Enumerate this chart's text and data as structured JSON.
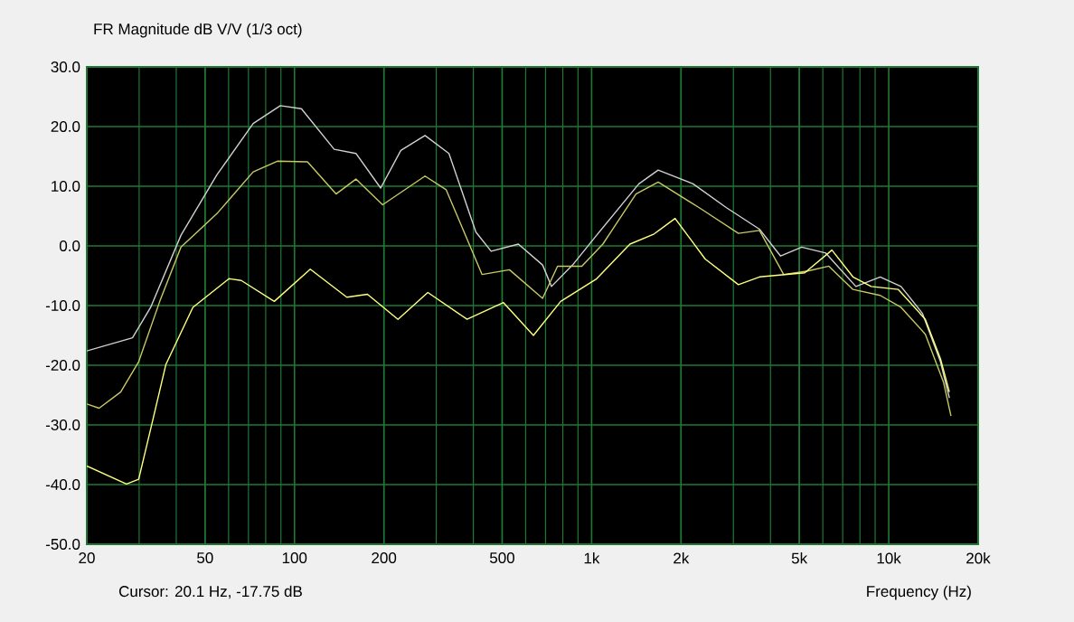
{
  "chart_data": {
    "type": "line",
    "title": "FR Magnitude dB V/V (1/3 oct)",
    "xlabel": "Frequency (Hz)",
    "annotations": [
      "Cursor: 20.1 Hz, -17.75 dB"
    ],
    "log": "x",
    "grid": true,
    "line_style": "solid",
    "xlim": [
      20,
      20000
    ],
    "ylim": [
      -50,
      30
    ],
    "xticks": [
      20,
      50,
      100,
      200,
      500,
      {
        "value": 1000,
        "label": "1k"
      },
      {
        "value": 2000,
        "label": "2k"
      },
      {
        "value": 5000,
        "label": "5k"
      },
      {
        "value": 10000,
        "label": "10k"
      },
      {
        "value": 20000,
        "label": "20k"
      }
    ],
    "yticks": [
      {
        "value": -50,
        "label": "-50.0"
      },
      {
        "value": -40,
        "label": "-40.0"
      },
      {
        "value": -30,
        "label": "-30.0"
      },
      {
        "value": -20,
        "label": "-20.0"
      },
      {
        "value": -10,
        "label": "-10.0"
      },
      {
        "value": 0,
        "label": "0.0"
      },
      {
        "value": 10,
        "label": "10.0"
      },
      {
        "value": 20,
        "label": "20.0"
      },
      {
        "value": 30,
        "label": "30.0"
      }
    ],
    "series": [
      {
        "color": "#d0d0d0",
        "x": [
          20,
          28.5,
          32.8,
          41.5,
          54.8,
          72.6,
          89.6,
          105.5,
          136,
          161,
          195,
          228,
          275,
          331,
          408,
          459,
          567,
          684,
          733,
          863,
          1040,
          1442,
          1675,
          2196,
          2844,
          3673,
          4326,
          5094,
          6140,
          7755,
          9360,
          11000,
          12980,
          14930,
          16000
        ],
        "values": [
          -17.6,
          -15.4,
          -10.3,
          1.8,
          11.9,
          20.5,
          23.5,
          23.0,
          16.2,
          15.5,
          9.7,
          16.0,
          18.5,
          15.5,
          2.3,
          -0.9,
          0.3,
          -3.2,
          -6.8,
          -3.2,
          1.8,
          10.4,
          12.7,
          10.4,
          6.4,
          2.8,
          -1.7,
          -0.2,
          -1.2,
          -6.8,
          -5.2,
          -6.8,
          -11.3,
          -19.4,
          -25.5
        ]
      },
      {
        "color": "#c8c864",
        "x": [
          20,
          22,
          26,
          29.9,
          35.2,
          41.5,
          54.8,
          72.6,
          87.5,
          110.6,
          138,
          161,
          198,
          275,
          324,
          428,
          529,
          684,
          768,
          927,
          1091,
          1410,
          1675,
          2303,
          3120,
          3673,
          4430,
          5340,
          6290,
          7580,
          9360,
          11000,
          13280,
          15300,
          16200
        ],
        "values": [
          -26.5,
          -27.2,
          -24.5,
          -19.4,
          -9.3,
          -0.2,
          5.4,
          12.4,
          14.2,
          14.1,
          8.7,
          11.2,
          6.9,
          11.7,
          9.4,
          -4.8,
          -4.0,
          -8.8,
          -3.4,
          -3.4,
          0.3,
          8.7,
          10.7,
          6.4,
          2.1,
          2.6,
          -4.8,
          -4.2,
          -3.4,
          -7.3,
          -8.3,
          -10.3,
          -14.8,
          -22.9,
          -28.5
        ]
      },
      {
        "color": "#ffff80",
        "x": [
          20,
          27.2,
          29.9,
          33.6,
          36.9,
          45.5,
          60.2,
          66.2,
          85.5,
          113,
          150,
          176,
          223,
          281,
          381,
          505,
          637,
          787,
          1040,
          1346,
          1623,
          1910,
          2411,
          3120,
          3673,
          5216,
          6440,
          7580,
          8730,
          10770,
          13280,
          14930,
          16000
        ],
        "values": [
          -36.9,
          -39.9,
          -39.1,
          -28.5,
          -19.9,
          -10.3,
          -5.5,
          -5.8,
          -9.3,
          -3.9,
          -8.6,
          -8.1,
          -12.3,
          -7.8,
          -12.3,
          -9.5,
          -15.0,
          -9.3,
          -5.5,
          0.3,
          2.0,
          4.6,
          -2.2,
          -6.5,
          -5.2,
          -4.5,
          -0.7,
          -5.2,
          -6.8,
          -7.3,
          -12.3,
          -18.9,
          -24.5
        ]
      }
    ]
  }
}
